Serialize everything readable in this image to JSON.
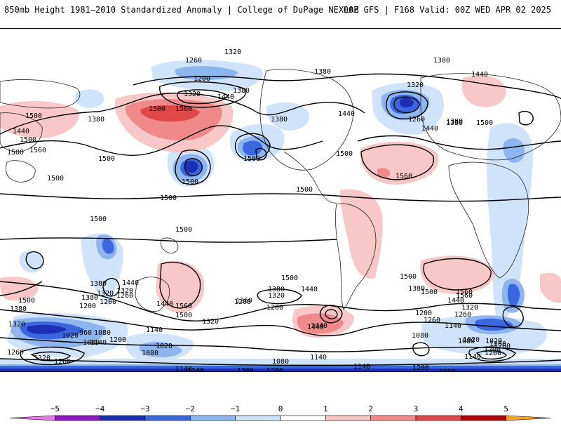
{
  "header": {
    "left": "850mb Height 1981–2010 Standardized Anomaly | College of DuPage NEXLAB",
    "right": "00Z GFS | F168 Valid: 00Z WED APR 02 2025"
  },
  "contour_labels": [
    {
      "id": "c1",
      "text": "1320"
    },
    {
      "id": "c2",
      "text": "1260"
    },
    {
      "id": "c3",
      "text": "1200"
    },
    {
      "id": "c4",
      "text": "1380"
    },
    {
      "id": "c5",
      "text": "1440"
    },
    {
      "id": "c6",
      "text": "1320"
    },
    {
      "id": "c7",
      "text": "1380"
    },
    {
      "id": "c8",
      "text": "1440"
    },
    {
      "id": "c9",
      "text": "1500"
    },
    {
      "id": "c10",
      "text": "1560"
    },
    {
      "id": "c11",
      "text": "1500"
    },
    {
      "id": "c12",
      "text": "1380"
    },
    {
      "id": "c13",
      "text": "1440"
    },
    {
      "id": "c14",
      "text": "1500"
    },
    {
      "id": "c15",
      "text": "1500"
    },
    {
      "id": "c16",
      "text": "1560"
    },
    {
      "id": "c17",
      "text": "1500"
    },
    {
      "id": "c18",
      "text": "1500"
    },
    {
      "id": "c19",
      "text": "1380"
    },
    {
      "id": "c20",
      "text": "1380"
    },
    {
      "id": "c21",
      "text": "1440"
    },
    {
      "id": "c22",
      "text": "1320"
    },
    {
      "id": "c23",
      "text": "1380"
    },
    {
      "id": "c24",
      "text": "1260"
    },
    {
      "id": "c25",
      "text": "1440"
    },
    {
      "id": "c26",
      "text": "1380"
    },
    {
      "id": "c27",
      "text": "1500"
    },
    {
      "id": "c28",
      "text": "1560"
    },
    {
      "id": "c29",
      "text": "1500"
    },
    {
      "id": "c30",
      "text": "1500"
    },
    {
      "id": "c31",
      "text": "1500"
    },
    {
      "id": "c32",
      "text": "1500"
    },
    {
      "id": "c33",
      "text": "1500"
    },
    {
      "id": "c34",
      "text": "1500"
    },
    {
      "id": "c35",
      "text": "1500"
    },
    {
      "id": "c36",
      "text": "1500"
    },
    {
      "id": "c37",
      "text": "1440"
    },
    {
      "id": "c38",
      "text": "1380"
    },
    {
      "id": "c39",
      "text": "1320"
    },
    {
      "id": "c40",
      "text": "1200"
    },
    {
      "id": "c41",
      "text": "1500"
    },
    {
      "id": "c42",
      "text": "1380"
    },
    {
      "id": "c43",
      "text": "1440"
    },
    {
      "id": "c44",
      "text": "1320"
    },
    {
      "id": "c45",
      "text": "1260"
    },
    {
      "id": "c46",
      "text": "1200"
    },
    {
      "id": "c47",
      "text": "1440"
    },
    {
      "id": "c48",
      "text": "1500"
    },
    {
      "id": "c49",
      "text": "1560"
    },
    {
      "id": "c50",
      "text": "1260"
    },
    {
      "id": "c51",
      "text": "1320"
    },
    {
      "id": "c52",
      "text": "1200"
    },
    {
      "id": "c53",
      "text": "1260"
    },
    {
      "id": "c54",
      "text": "1140"
    },
    {
      "id": "c55",
      "text": "1080"
    },
    {
      "id": "c56",
      "text": "1020"
    },
    {
      "id": "c57",
      "text": "1260"
    },
    {
      "id": "c58",
      "text": "1200"
    },
    {
      "id": "c59",
      "text": "1380"
    },
    {
      "id": "c60",
      "text": "1500"
    },
    {
      "id": "c61",
      "text": "1560"
    },
    {
      "id": "c62",
      "text": "1440"
    },
    {
      "id": "c63",
      "text": "1200"
    },
    {
      "id": "c64",
      "text": "1320"
    },
    {
      "id": "c65",
      "text": "1380"
    },
    {
      "id": "c66",
      "text": "1440"
    },
    {
      "id": "c67",
      "text": "1500"
    },
    {
      "id": "c68",
      "text": "1560"
    },
    {
      "id": "c69",
      "text": "1440"
    },
    {
      "id": "c70",
      "text": "1380"
    },
    {
      "id": "c71",
      "text": "1320"
    },
    {
      "id": "c72",
      "text": "1260"
    },
    {
      "id": "c73",
      "text": "1200"
    },
    {
      "id": "c74",
      "text": "1140"
    },
    {
      "id": "c75",
      "text": "1020"
    },
    {
      "id": "c76",
      "text": "1080"
    },
    {
      "id": "c77",
      "text": "960"
    },
    {
      "id": "c78",
      "text": "1080"
    },
    {
      "id": "c79",
      "text": "1140"
    },
    {
      "id": "c80",
      "text": "1200"
    },
    {
      "id": "c81",
      "text": "1020"
    },
    {
      "id": "c82",
      "text": "1080"
    },
    {
      "id": "c83",
      "text": "1140"
    },
    {
      "id": "c84",
      "text": "1080"
    },
    {
      "id": "c85",
      "text": "1140"
    },
    {
      "id": "c86",
      "text": "1140"
    },
    {
      "id": "c87",
      "text": "1200"
    },
    {
      "id": "c88",
      "text": "1260"
    },
    {
      "id": "c89",
      "text": "1200"
    },
    {
      "id": "c90",
      "text": "1260"
    },
    {
      "id": "c91",
      "text": "1020"
    },
    {
      "id": "c92",
      "text": "1080"
    },
    {
      "id": "c93",
      "text": "1260"
    },
    {
      "id": "c94",
      "text": "1200"
    },
    {
      "id": "c95",
      "text": "1140"
    },
    {
      "id": "c96",
      "text": "1260"
    },
    {
      "id": "c97",
      "text": "1320"
    },
    {
      "id": "c98",
      "text": "1260"
    },
    {
      "id": "c99",
      "text": "1140"
    },
    {
      "id": "c100",
      "text": "1320"
    }
  ],
  "colorbar": {
    "ticks": [
      "−5",
      "−4",
      "−3",
      "−2",
      "−1",
      "0",
      "1",
      "2",
      "3",
      "4",
      "5"
    ],
    "colors": [
      "#e879e8",
      "#8b18c9",
      "#1c2fb5",
      "#3a66e0",
      "#8fb5ef",
      "#cfe3fa",
      "#ffffff",
      "#f8c8c8",
      "#f08a8a",
      "#e04848",
      "#b00000",
      "#f5a623"
    ]
  }
}
